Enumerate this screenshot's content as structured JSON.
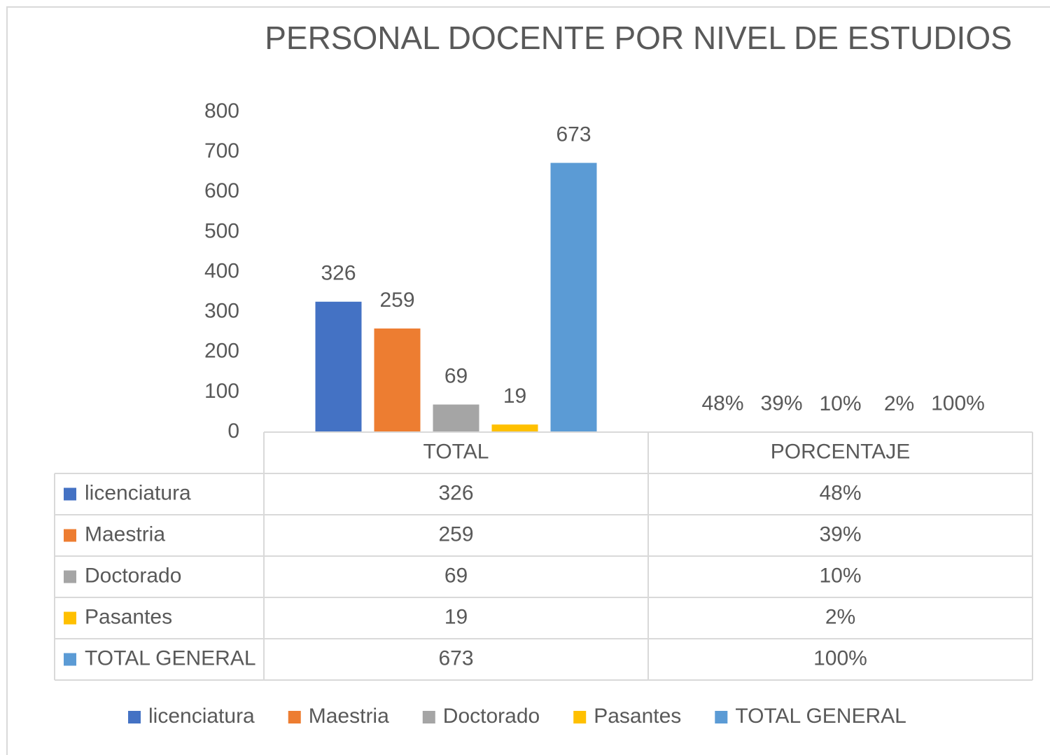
{
  "chart_data": {
    "type": "bar",
    "title": "PERSONAL DOCENTE POR NIVEL DE ESTUDIOS",
    "categories": [
      "TOTAL",
      "PORCENTAJE"
    ],
    "series": [
      {
        "name": "licenciatura",
        "color": "#4472c4",
        "values": [
          326,
          0.48
        ],
        "value_labels": [
          "326",
          "48%"
        ]
      },
      {
        "name": "Maestria",
        "color": "#ed7d31",
        "values": [
          259,
          0.39
        ],
        "value_labels": [
          "259",
          "39%"
        ]
      },
      {
        "name": "Doctorado",
        "color": "#a5a5a5",
        "values": [
          69,
          0.1
        ],
        "value_labels": [
          "69",
          "10%"
        ]
      },
      {
        "name": "Pasantes",
        "color": "#ffc000",
        "values": [
          19,
          0.02
        ],
        "value_labels": [
          "19",
          "2%"
        ]
      },
      {
        "name": "TOTAL GENERAL",
        "color": "#5b9bd5",
        "values": [
          673,
          1.0
        ],
        "value_labels": [
          "673",
          "100%"
        ]
      }
    ],
    "ylim": [
      0,
      800
    ],
    "yticks": [
      0,
      100,
      200,
      300,
      400,
      500,
      600,
      700,
      800
    ],
    "grid": false,
    "data_table": true,
    "legend": "bottom"
  }
}
